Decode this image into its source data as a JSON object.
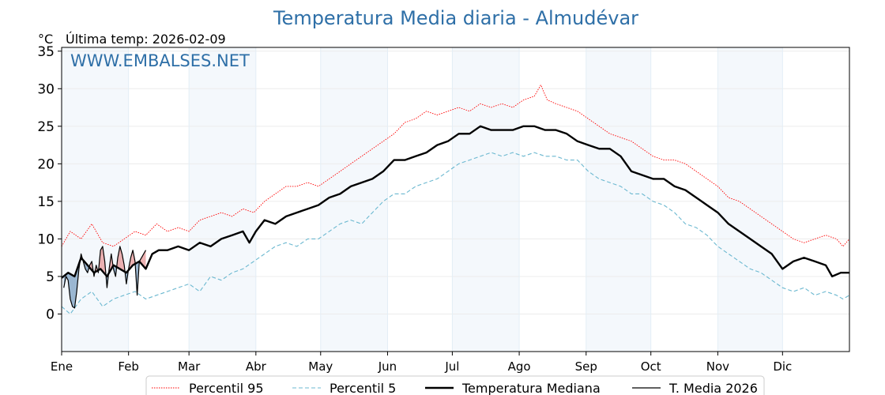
{
  "chart_data": {
    "type": "line",
    "title": "Temperatura Media diaria - Almudévar",
    "unit": "°C",
    "last_temp_label": "Última temp: 2026-02-09",
    "watermark": "WWW.EMBALSES.NET",
    "ylim": [
      -5,
      35.5
    ],
    "yticks": [
      0,
      5,
      10,
      15,
      20,
      25,
      30,
      35
    ],
    "xlim": [
      1,
      366
    ],
    "months": [
      {
        "label": "Ene",
        "day": 1
      },
      {
        "label": "Feb",
        "day": 32
      },
      {
        "label": "Mar",
        "day": 60
      },
      {
        "label": "Abr",
        "day": 91
      },
      {
        "label": "May",
        "day": 121
      },
      {
        "label": "Jun",
        "day": 152
      },
      {
        "label": "Jul",
        "day": 182
      },
      {
        "label": "Ago",
        "day": 213
      },
      {
        "label": "Sep",
        "day": 244
      },
      {
        "label": "Oct",
        "day": 274
      },
      {
        "label": "Nov",
        "day": 305
      },
      {
        "label": "Dic",
        "day": 335
      }
    ],
    "series": [
      {
        "name": "Percentil 95",
        "color": "#ff0000",
        "style": "dotted",
        "points": [
          [
            1,
            9
          ],
          [
            5,
            11
          ],
          [
            10,
            10
          ],
          [
            15,
            12
          ],
          [
            20,
            9.5
          ],
          [
            25,
            9
          ],
          [
            30,
            10
          ],
          [
            35,
            11
          ],
          [
            40,
            10.5
          ],
          [
            45,
            12
          ],
          [
            50,
            11
          ],
          [
            55,
            11.5
          ],
          [
            60,
            11
          ],
          [
            65,
            12.5
          ],
          [
            70,
            13
          ],
          [
            75,
            13.5
          ],
          [
            80,
            13
          ],
          [
            85,
            14
          ],
          [
            90,
            13.5
          ],
          [
            95,
            15
          ],
          [
            100,
            16
          ],
          [
            105,
            17
          ],
          [
            110,
            17
          ],
          [
            115,
            17.5
          ],
          [
            120,
            17
          ],
          [
            125,
            18
          ],
          [
            130,
            19
          ],
          [
            135,
            20
          ],
          [
            140,
            21
          ],
          [
            145,
            22
          ],
          [
            150,
            23
          ],
          [
            155,
            24
          ],
          [
            160,
            25.5
          ],
          [
            165,
            26
          ],
          [
            170,
            27
          ],
          [
            175,
            26.5
          ],
          [
            180,
            27
          ],
          [
            185,
            27.5
          ],
          [
            190,
            27
          ],
          [
            195,
            28
          ],
          [
            200,
            27.5
          ],
          [
            205,
            28
          ],
          [
            210,
            27.5
          ],
          [
            215,
            28.5
          ],
          [
            220,
            29
          ],
          [
            223,
            30.5
          ],
          [
            226,
            28.5
          ],
          [
            230,
            28
          ],
          [
            235,
            27.5
          ],
          [
            240,
            27
          ],
          [
            245,
            26
          ],
          [
            250,
            25
          ],
          [
            255,
            24
          ],
          [
            260,
            23.5
          ],
          [
            265,
            23
          ],
          [
            270,
            22
          ],
          [
            275,
            21
          ],
          [
            280,
            20.5
          ],
          [
            285,
            20.5
          ],
          [
            290,
            20
          ],
          [
            295,
            19
          ],
          [
            300,
            18
          ],
          [
            305,
            17
          ],
          [
            310,
            15.5
          ],
          [
            315,
            15
          ],
          [
            320,
            14
          ],
          [
            325,
            13
          ],
          [
            330,
            12
          ],
          [
            335,
            11
          ],
          [
            340,
            10
          ],
          [
            345,
            9.5
          ],
          [
            350,
            10
          ],
          [
            355,
            10.5
          ],
          [
            360,
            10
          ],
          [
            363,
            9
          ],
          [
            366,
            10
          ]
        ]
      },
      {
        "name": "Percentil 5",
        "color": "#6bb8d0",
        "style": "dashed",
        "points": [
          [
            1,
            1
          ],
          [
            5,
            0
          ],
          [
            10,
            2
          ],
          [
            15,
            3
          ],
          [
            20,
            1
          ],
          [
            25,
            2
          ],
          [
            30,
            2.5
          ],
          [
            35,
            3
          ],
          [
            40,
            2
          ],
          [
            45,
            2.5
          ],
          [
            50,
            3
          ],
          [
            55,
            3.5
          ],
          [
            60,
            4
          ],
          [
            65,
            3
          ],
          [
            70,
            5
          ],
          [
            75,
            4.5
          ],
          [
            80,
            5.5
          ],
          [
            85,
            6
          ],
          [
            90,
            7
          ],
          [
            95,
            8
          ],
          [
            100,
            9
          ],
          [
            105,
            9.5
          ],
          [
            110,
            9
          ],
          [
            115,
            10
          ],
          [
            120,
            10
          ],
          [
            125,
            11
          ],
          [
            130,
            12
          ],
          [
            135,
            12.5
          ],
          [
            140,
            12
          ],
          [
            145,
            13.5
          ],
          [
            150,
            15
          ],
          [
            155,
            16
          ],
          [
            160,
            16
          ],
          [
            165,
            17
          ],
          [
            170,
            17.5
          ],
          [
            175,
            18
          ],
          [
            180,
            19
          ],
          [
            185,
            20
          ],
          [
            190,
            20.5
          ],
          [
            195,
            21
          ],
          [
            200,
            21.5
          ],
          [
            205,
            21
          ],
          [
            210,
            21.5
          ],
          [
            215,
            21
          ],
          [
            220,
            21.5
          ],
          [
            225,
            21
          ],
          [
            230,
            21
          ],
          [
            235,
            20.5
          ],
          [
            240,
            20.5
          ],
          [
            245,
            19
          ],
          [
            250,
            18
          ],
          [
            255,
            17.5
          ],
          [
            260,
            17
          ],
          [
            265,
            16
          ],
          [
            270,
            16
          ],
          [
            275,
            15
          ],
          [
            280,
            14.5
          ],
          [
            285,
            13.5
          ],
          [
            290,
            12
          ],
          [
            295,
            11.5
          ],
          [
            300,
            10.5
          ],
          [
            305,
            9
          ],
          [
            310,
            8
          ],
          [
            315,
            7
          ],
          [
            320,
            6
          ],
          [
            325,
            5.5
          ],
          [
            330,
            4.5
          ],
          [
            335,
            3.5
          ],
          [
            340,
            3
          ],
          [
            345,
            3.5
          ],
          [
            350,
            2.5
          ],
          [
            355,
            3
          ],
          [
            360,
            2.5
          ],
          [
            363,
            2
          ],
          [
            366,
            2.5
          ]
        ]
      },
      {
        "name": "Temperatura Mediana",
        "color": "#000000",
        "style": "solid-thick",
        "points": [
          [
            1,
            4.8
          ],
          [
            4,
            5.5
          ],
          [
            7,
            5
          ],
          [
            10,
            7.5
          ],
          [
            13,
            6.5
          ],
          [
            16,
            5.5
          ],
          [
            19,
            6
          ],
          [
            22,
            5
          ],
          [
            25,
            6.5
          ],
          [
            28,
            6
          ],
          [
            31,
            5.5
          ],
          [
            34,
            6.5
          ],
          [
            37,
            7
          ],
          [
            40,
            6
          ],
          [
            43,
            8
          ],
          [
            46,
            8.5
          ],
          [
            50,
            8.5
          ],
          [
            55,
            9
          ],
          [
            60,
            8.5
          ],
          [
            65,
            9.5
          ],
          [
            70,
            9
          ],
          [
            75,
            10
          ],
          [
            80,
            10.5
          ],
          [
            85,
            11
          ],
          [
            88,
            9.5
          ],
          [
            91,
            11
          ],
          [
            95,
            12.5
          ],
          [
            100,
            12
          ],
          [
            105,
            13
          ],
          [
            110,
            13.5
          ],
          [
            115,
            14
          ],
          [
            120,
            14.5
          ],
          [
            125,
            15.5
          ],
          [
            130,
            16
          ],
          [
            135,
            17
          ],
          [
            140,
            17.5
          ],
          [
            145,
            18
          ],
          [
            150,
            19
          ],
          [
            155,
            20.5
          ],
          [
            160,
            20.5
          ],
          [
            165,
            21
          ],
          [
            170,
            21.5
          ],
          [
            175,
            22.5
          ],
          [
            180,
            23
          ],
          [
            185,
            24
          ],
          [
            190,
            24
          ],
          [
            195,
            25
          ],
          [
            200,
            24.5
          ],
          [
            205,
            24.5
          ],
          [
            210,
            24.5
          ],
          [
            215,
            25
          ],
          [
            220,
            25
          ],
          [
            225,
            24.5
          ],
          [
            230,
            24.5
          ],
          [
            235,
            24
          ],
          [
            240,
            23
          ],
          [
            245,
            22.5
          ],
          [
            250,
            22
          ],
          [
            255,
            22
          ],
          [
            260,
            21
          ],
          [
            265,
            19
          ],
          [
            270,
            18.5
          ],
          [
            275,
            18
          ],
          [
            280,
            18
          ],
          [
            285,
            17
          ],
          [
            290,
            16.5
          ],
          [
            295,
            15.5
          ],
          [
            300,
            14.5
          ],
          [
            305,
            13.5
          ],
          [
            310,
            12
          ],
          [
            315,
            11
          ],
          [
            320,
            10
          ],
          [
            325,
            9
          ],
          [
            330,
            8
          ],
          [
            335,
            6
          ],
          [
            340,
            7
          ],
          [
            345,
            7.5
          ],
          [
            350,
            7
          ],
          [
            355,
            6.5
          ],
          [
            358,
            5
          ],
          [
            362,
            5.5
          ],
          [
            366,
            5.5
          ]
        ]
      },
      {
        "name": "T. Media 2026",
        "color": "#000000",
        "style": "solid-thin",
        "points": [
          [
            2,
            3.5
          ],
          [
            3,
            5
          ],
          [
            4,
            4.5
          ],
          [
            5,
            2
          ],
          [
            6,
            1
          ],
          [
            7,
            0.8
          ],
          [
            8,
            3
          ],
          [
            9,
            6
          ],
          [
            10,
            8
          ],
          [
            11,
            7
          ],
          [
            12,
            6
          ],
          [
            13,
            5.5
          ],
          [
            14,
            6.5
          ],
          [
            15,
            7
          ],
          [
            16,
            5
          ],
          [
            17,
            6.5
          ],
          [
            18,
            5.5
          ],
          [
            19,
            8.5
          ],
          [
            20,
            9
          ],
          [
            21,
            7
          ],
          [
            22,
            3.5
          ],
          [
            23,
            6
          ],
          [
            24,
            8
          ],
          [
            25,
            6
          ],
          [
            26,
            5
          ],
          [
            27,
            7.5
          ],
          [
            28,
            9
          ],
          [
            29,
            8
          ],
          [
            30,
            6.5
          ],
          [
            31,
            4
          ],
          [
            32,
            6
          ],
          [
            33,
            7.5
          ],
          [
            34,
            8.5
          ],
          [
            35,
            7
          ],
          [
            36,
            2.5
          ],
          [
            37,
            7
          ],
          [
            38,
            7.5
          ],
          [
            39,
            8
          ],
          [
            40,
            8.5
          ]
        ]
      }
    ],
    "legend": [
      {
        "label": "Percentil 95"
      },
      {
        "label": "Percentil 5"
      },
      {
        "label": "Temperatura Mediana"
      },
      {
        "label": "T. Media 2026"
      }
    ]
  }
}
